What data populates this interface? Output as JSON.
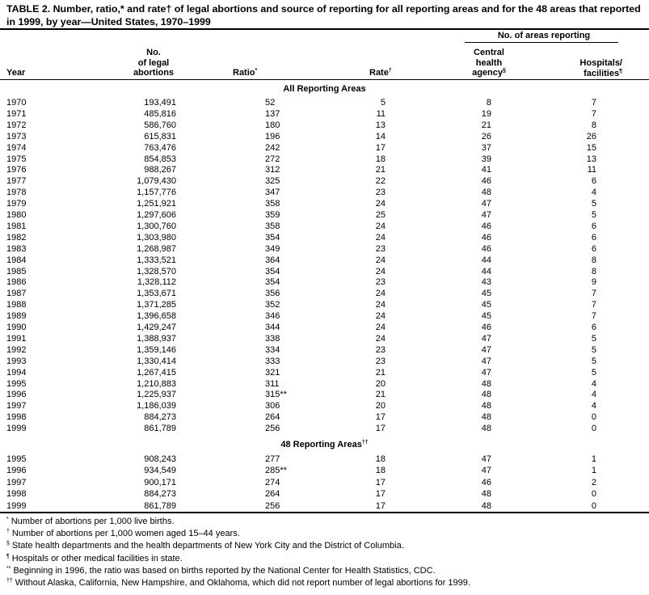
{
  "title": "TABLE 2. Number, ratio,* and rate† of legal abortions and source of reporting for all reporting areas and for the 48 areas that reported in 1999, by year—United States, 1970–1999",
  "header": {
    "group": "No. of areas reporting",
    "year": "Year",
    "abortions_1": "No.",
    "abortions_2": "of legal",
    "abortions_3": "abortions",
    "ratio": "Ratio",
    "ratio_mark": "*",
    "rate": "Rate",
    "rate_mark": "†",
    "central_1": "Central",
    "central_2": "health",
    "central_3": "agency",
    "central_mark": "§",
    "hosp_1": "Hospitals/",
    "hosp_2": "facilities",
    "hosp_mark": "¶"
  },
  "sections": [
    {
      "label": "All Reporting Areas",
      "mark": "",
      "rows": [
        [
          "1970",
          "193,491",
          "52",
          "5",
          "8",
          "7"
        ],
        [
          "1971",
          "485,816",
          "137",
          "11",
          "19",
          "7"
        ],
        [
          "1972",
          "586,760",
          "180",
          "13",
          "21",
          "8"
        ],
        [
          "1973",
          "615,831",
          "196",
          "14",
          "26",
          "26"
        ],
        [
          "1974",
          "763,476",
          "242",
          "17",
          "37",
          "15"
        ],
        [
          "1975",
          "854,853",
          "272",
          "18",
          "39",
          "13"
        ],
        [
          "1976",
          "988,267",
          "312",
          "21",
          "41",
          "11"
        ],
        [
          "1977",
          "1,079,430",
          "325",
          "22",
          "46",
          "6"
        ],
        [
          "1978",
          "1,157,776",
          "347",
          "23",
          "48",
          "4"
        ],
        [
          "1979",
          "1,251,921",
          "358",
          "24",
          "47",
          "5"
        ],
        [
          "1980",
          "1,297,606",
          "359",
          "25",
          "47",
          "5"
        ],
        [
          "1981",
          "1,300,760",
          "358",
          "24",
          "46",
          "6"
        ],
        [
          "1982",
          "1,303,980",
          "354",
          "24",
          "46",
          "6"
        ],
        [
          "1983",
          "1,268,987",
          "349",
          "23",
          "46",
          "6"
        ],
        [
          "1984",
          "1,333,521",
          "364",
          "24",
          "44",
          "8"
        ],
        [
          "1985",
          "1,328,570",
          "354",
          "24",
          "44",
          "8"
        ],
        [
          "1986",
          "1,328,112",
          "354",
          "23",
          "43",
          "9"
        ],
        [
          "1987",
          "1,353,671",
          "356",
          "24",
          "45",
          "7"
        ],
        [
          "1988",
          "1,371,285",
          "352",
          "24",
          "45",
          "7"
        ],
        [
          "1989",
          "1,396,658",
          "346",
          "24",
          "45",
          "7"
        ],
        [
          "1990",
          "1,429,247",
          "344",
          "24",
          "46",
          "6"
        ],
        [
          "1991",
          "1,388,937",
          "338",
          "24",
          "47",
          "5"
        ],
        [
          "1992",
          "1,359,146",
          "334",
          "23",
          "47",
          "5"
        ],
        [
          "1993",
          "1,330,414",
          "333",
          "23",
          "47",
          "5"
        ],
        [
          "1994",
          "1,267,415",
          "321",
          "21",
          "47",
          "5"
        ],
        [
          "1995",
          "1,210,883",
          "311",
          "20",
          "48",
          "4"
        ],
        [
          "1996",
          "1,225,937",
          "315**",
          "21",
          "48",
          "4"
        ],
        [
          "1997",
          "1,186,039",
          "306",
          "20",
          "48",
          "4"
        ],
        [
          "1998",
          "884,273",
          "264",
          "17",
          "48",
          "0"
        ],
        [
          "1999",
          "861,789",
          "256",
          "17",
          "48",
          "0"
        ]
      ]
    },
    {
      "label": "48 Reporting Areas",
      "mark": "††",
      "rows": [
        [
          "1995",
          "908,243",
          "277",
          "18",
          "47",
          "1"
        ],
        [
          "1996",
          "934,549",
          "285**",
          "18",
          "47",
          "1"
        ],
        [
          "1997",
          "900,171",
          "274",
          "17",
          "46",
          "2"
        ],
        [
          "1998",
          "884,273",
          "264",
          "17",
          "48",
          "0"
        ],
        [
          "1999",
          "861,789",
          "256",
          "17",
          "48",
          "0"
        ]
      ]
    }
  ],
  "footnotes": [
    {
      "mark": "*",
      "text": "Number of abortions per 1,000 live births."
    },
    {
      "mark": "†",
      "text": "Number of abortions per 1,000 women aged 15–44 years."
    },
    {
      "mark": "§",
      "text": "State health departments and the health departments of New York City and the District of Columbia."
    },
    {
      "mark": "¶",
      "text": "Hospitals or other medical facilities in state."
    },
    {
      "mark": "**",
      "text": "Beginning in 1996, the ratio was based on births reported by the National Center for Health Statistics, CDC."
    },
    {
      "mark": "††",
      "text": "Without Alaska, California, New Hampshire, and Oklahoma, which did not report number of legal abortions for 1999."
    }
  ]
}
